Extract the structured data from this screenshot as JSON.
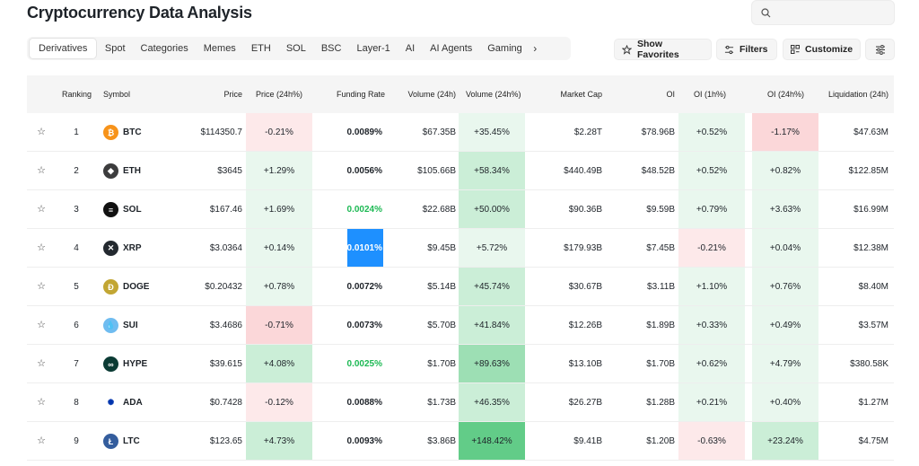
{
  "app": {
    "title": "Cryptocurrency Data Analysis"
  },
  "search": {
    "placeholder": ""
  },
  "tabs": [
    "Derivatives",
    "Spot",
    "Categories",
    "Memes",
    "ETH",
    "SOL",
    "BSC",
    "Layer-1",
    "AI",
    "AI Agents",
    "Gaming"
  ],
  "active_tab": "Derivatives",
  "toolbar": {
    "favorites": "Show Favorites",
    "filters": "Filters",
    "customize": "Customize"
  },
  "columns": {
    "ranking": "Ranking",
    "symbol": "Symbol",
    "price": "Price",
    "price_24h": "Price (24h%)",
    "funding_rate": "Funding Rate",
    "volume_24h": "Volume (24h)",
    "volume_pct_24h": "Volume (24h%)",
    "market_cap": "Market Cap",
    "oi": "OI",
    "oi_1h": "OI (1h%)",
    "oi_24h": "OI (24h%)",
    "liquidation_24h": "Liquidation (24h)"
  },
  "rows": [
    {
      "rank": "1",
      "symbol": "BTC",
      "icon": "bitcoin-icon",
      "color": "#f7931a",
      "glyph": "₿",
      "price": "$114350.7",
      "price_24h": "-0.21%",
      "funding": "0.0089%",
      "volume": "$67.35B",
      "volume_pct": "+35.45%",
      "mcap": "$2.28T",
      "oi": "$78.96B",
      "oi_1h": "+0.52%",
      "oi_24h": "-1.17%",
      "liq": "$47.63M"
    },
    {
      "rank": "2",
      "symbol": "ETH",
      "icon": "ethereum-icon",
      "color": "#3c3c3d",
      "glyph": "◆",
      "price": "$3645",
      "price_24h": "+1.29%",
      "funding": "0.0056%",
      "volume": "$105.66B",
      "volume_pct": "+58.34%",
      "mcap": "$440.49B",
      "oi": "$48.52B",
      "oi_1h": "+0.52%",
      "oi_24h": "+0.82%",
      "liq": "$122.85M"
    },
    {
      "rank": "3",
      "symbol": "SOL",
      "icon": "solana-icon",
      "color": "#111111",
      "glyph": "≡",
      "price": "$167.46",
      "price_24h": "+1.69%",
      "funding": "0.0024%",
      "volume": "$22.68B",
      "volume_pct": "+50.00%",
      "mcap": "$90.36B",
      "oi": "$9.59B",
      "oi_1h": "+0.79%",
      "oi_24h": "+3.63%",
      "liq": "$16.99M"
    },
    {
      "rank": "4",
      "symbol": "XRP",
      "icon": "xrp-icon",
      "color": "#23292f",
      "glyph": "✕",
      "price": "$3.0364",
      "price_24h": "+0.14%",
      "funding": "0.0101%",
      "volume": "$9.45B",
      "volume_pct": "+5.72%",
      "mcap": "$179.93B",
      "oi": "$7.45B",
      "oi_1h": "-0.21%",
      "oi_24h": "+0.04%",
      "liq": "$12.38M"
    },
    {
      "rank": "5",
      "symbol": "DOGE",
      "icon": "dogecoin-icon",
      "color": "#c2a633",
      "glyph": "Ð",
      "price": "$0.20432",
      "price_24h": "+0.78%",
      "funding": "0.0072%",
      "volume": "$5.14B",
      "volume_pct": "+45.74%",
      "mcap": "$30.67B",
      "oi": "$3.11B",
      "oi_1h": "+1.10%",
      "oi_24h": "+0.76%",
      "liq": "$8.40M"
    },
    {
      "rank": "6",
      "symbol": "SUI",
      "icon": "sui-icon",
      "color": "#6fbcf0",
      "glyph": "💧",
      "price": "$3.4686",
      "price_24h": "-0.71%",
      "funding": "0.0073%",
      "volume": "$5.70B",
      "volume_pct": "+41.84%",
      "mcap": "$12.26B",
      "oi": "$1.89B",
      "oi_1h": "+0.33%",
      "oi_24h": "+0.49%",
      "liq": "$3.57M"
    },
    {
      "rank": "7",
      "symbol": "HYPE",
      "icon": "hyperliquid-icon",
      "color": "#0b3b34",
      "glyph": "∞",
      "price": "$39.615",
      "price_24h": "+4.08%",
      "funding": "0.0025%",
      "volume": "$1.70B",
      "volume_pct": "+89.63%",
      "mcap": "$13.10B",
      "oi": "$1.70B",
      "oi_1h": "+0.62%",
      "oi_24h": "+4.79%",
      "liq": "$380.58K"
    },
    {
      "rank": "8",
      "symbol": "ADA",
      "icon": "cardano-icon",
      "color": "#ffffff",
      "glyph": "✺",
      "price": "$0.7428",
      "price_24h": "-0.12%",
      "funding": "0.0088%",
      "volume": "$1.73B",
      "volume_pct": "+46.35%",
      "mcap": "$26.27B",
      "oi": "$1.28B",
      "oi_1h": "+0.21%",
      "oi_24h": "+0.40%",
      "liq": "$1.27M"
    },
    {
      "rank": "9",
      "symbol": "LTC",
      "icon": "litecoin-icon",
      "color": "#345d9d",
      "glyph": "Ł",
      "price": "$123.65",
      "price_24h": "+4.73%",
      "funding": "0.0093%",
      "volume": "$3.86B",
      "volume_pct": "+148.42%",
      "mcap": "$9.41B",
      "oi": "$1.20B",
      "oi_1h": "-0.63%",
      "oi_24h": "+23.24%",
      "liq": "$4.75M"
    }
  ],
  "highlight": {
    "row": 3,
    "column": "funding"
  },
  "colors": {
    "positive_text": "#1db954",
    "highlight_bg": "#1e90ff"
  }
}
